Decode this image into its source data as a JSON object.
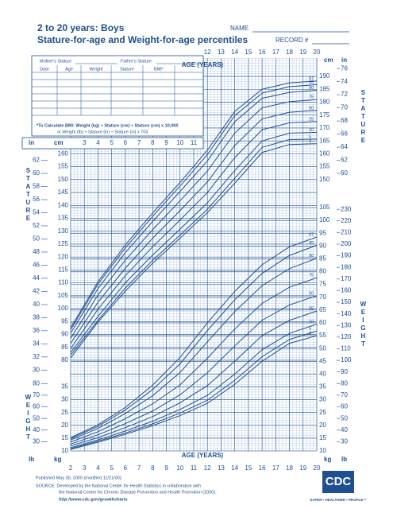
{
  "header": {
    "title": "2 to 20 years: Boys",
    "subtitle": "Stature-for-age and Weight-for-age percentiles",
    "name_label": "NAME",
    "record_label": "RECORD #"
  },
  "form": {
    "mother": "Mother's Stature",
    "father": "Father's Stature",
    "columns": [
      "Date",
      "Age",
      "Weight",
      "Stature",
      "BMI*"
    ],
    "bmi_note": [
      "*To Calculate BMI: Weight (kg) ÷ Stature (cm) ÷ Stature (cm) x 10,000",
      "or Weight (lb) ÷ Stature (in) ÷ Stature (in) x 703"
    ]
  },
  "chart_data": [
    {
      "type": "line",
      "side_label": "STATURE",
      "x_label": "AGE (YEARS)",
      "y_unit": "cm",
      "y2_unit": "in",
      "color": "#1d4f91",
      "grid": true,
      "xlim": [
        2,
        20
      ],
      "xticks": [
        2,
        3,
        4,
        5,
        6,
        7,
        8,
        9,
        10,
        11,
        12,
        13,
        14,
        15,
        16,
        17,
        18,
        19,
        20
      ],
      "ylim": [
        75,
        197
      ],
      "yticks": [
        80,
        85,
        90,
        95,
        100,
        105,
        110,
        115,
        120,
        125,
        130,
        135,
        140,
        145,
        150,
        155,
        160,
        165,
        170,
        175,
        180,
        185,
        190
      ],
      "y2lim": [
        29.53,
        77.56
      ],
      "y2ticks": [
        30,
        32,
        34,
        36,
        38,
        40,
        42,
        44,
        46,
        48,
        50,
        52,
        54,
        56,
        58,
        60,
        62,
        64,
        66,
        68,
        70,
        72,
        74,
        76
      ],
      "x": [
        2,
        4,
        6,
        8,
        10,
        12,
        14,
        16,
        18,
        20
      ],
      "series": [
        {
          "name": "97",
          "values": [
            92.6,
            110.4,
            124.7,
            137.1,
            148.9,
            161.4,
            176.4,
            185,
            187.5,
            188.2
          ]
        },
        {
          "name": "95",
          "values": [
            91.8,
            109.5,
            123.5,
            135.8,
            147.5,
            159.7,
            174.8,
            183.5,
            186,
            186.8
          ]
        },
        {
          "name": "90",
          "values": [
            90.5,
            107.8,
            121.7,
            133.8,
            145.4,
            157.2,
            172.4,
            181.5,
            183.8,
            184.6
          ]
        },
        {
          "name": "75",
          "values": [
            88.5,
            105.3,
            118.8,
            130.6,
            141.8,
            153.3,
            168,
            177.8,
            180.2,
            181
          ]
        },
        {
          "name": "50",
          "values": [
            86.5,
            102.5,
            115.7,
            127.3,
            138,
            149.1,
            163.2,
            173.5,
            176.1,
            176.8
          ]
        },
        {
          "name": "25",
          "values": [
            84.5,
            99.8,
            112.8,
            124,
            134.3,
            145,
            158.5,
            169.3,
            172,
            172.5
          ]
        },
        {
          "name": "10",
          "values": [
            83,
            97,
            110,
            120.8,
            130.8,
            141,
            153.5,
            165,
            168,
            168.3
          ]
        },
        {
          "name": "5",
          "values": [
            82,
            95.5,
            108,
            118.7,
            128.5,
            138.5,
            150.5,
            162.5,
            165.5,
            165.7
          ]
        },
        {
          "name": "3",
          "values": [
            80.9,
            94.8,
            106.8,
            117.6,
            127.3,
            137.2,
            148.6,
            160.5,
            163.6,
            163.9
          ]
        }
      ]
    },
    {
      "type": "line",
      "side_label": "WEIGHT",
      "x_label": "AGE (YEARS)",
      "y_unit": "kg",
      "y2_unit": "lb",
      "color": "#1d4f91",
      "grid": true,
      "xlim": [
        2,
        20
      ],
      "ylim": [
        10,
        105
      ],
      "yticks": [
        10,
        15,
        20,
        25,
        30,
        35,
        40,
        45,
        50,
        55,
        60,
        65,
        70,
        75,
        80,
        85,
        90,
        95,
        100,
        105
      ],
      "y2lim": [
        22.05,
        231.49
      ],
      "y2ticks": [
        30,
        40,
        50,
        60,
        70,
        80,
        90,
        100,
        110,
        120,
        130,
        140,
        150,
        160,
        170,
        180,
        190,
        200,
        210,
        220,
        230
      ],
      "x": [
        2,
        4,
        6,
        8,
        10,
        12,
        14,
        16,
        18,
        20
      ],
      "series": [
        {
          "name": "97",
          "values": [
            15.2,
            20.2,
            27,
            35.7,
            46.5,
            60,
            72.3,
            82.7,
            89.7,
            93.5
          ]
        },
        {
          "name": "95",
          "values": [
            14.8,
            19.6,
            26,
            34,
            44,
            57,
            69,
            79.3,
            86.3,
            90.3
          ]
        },
        {
          "name": "90",
          "values": [
            14.3,
            18.8,
            24.6,
            31.6,
            40.6,
            52.6,
            64.4,
            74.5,
            81.2,
            85.2
          ]
        },
        {
          "name": "75",
          "values": [
            13.5,
            17.5,
            22.6,
            28.4,
            35.8,
            46.2,
            57.6,
            67.6,
            73.9,
            77.6
          ]
        },
        {
          "name": "50",
          "values": [
            12.7,
            16.3,
            20.7,
            25.6,
            31.9,
            40.5,
            51,
            61,
            67,
            70.6
          ]
        },
        {
          "name": "25",
          "values": [
            12,
            15.2,
            19.1,
            23.4,
            28.8,
            35.5,
            45,
            55,
            61,
            64.6
          ]
        },
        {
          "name": "10",
          "values": [
            11.3,
            14.3,
            17.8,
            21.6,
            26.2,
            31.7,
            40,
            49.5,
            55.9,
            59.5
          ]
        },
        {
          "name": "5",
          "values": [
            10.9,
            13.8,
            17,
            20.6,
            24.8,
            29.8,
            37.6,
            46.8,
            53.5,
            56.8
          ]
        },
        {
          "name": "3",
          "values": [
            10.6,
            13.4,
            16.5,
            19.9,
            23.8,
            28.6,
            36,
            45,
            52,
            55
          ]
        }
      ]
    }
  ],
  "footer": {
    "published": "Published May 30, 2000 (modified 11/21/00).",
    "source": [
      "SOURCE: Developed by the National Center for Health Statistics in collaboration with",
      "the National Center for Chronic Disease Prevention and Health Promotion (2000)."
    ],
    "url": "http://www.cdc.gov/growthcharts",
    "logo": "CDC",
    "slogan": "SAFER • HEALTHIER • PEOPLE™"
  }
}
